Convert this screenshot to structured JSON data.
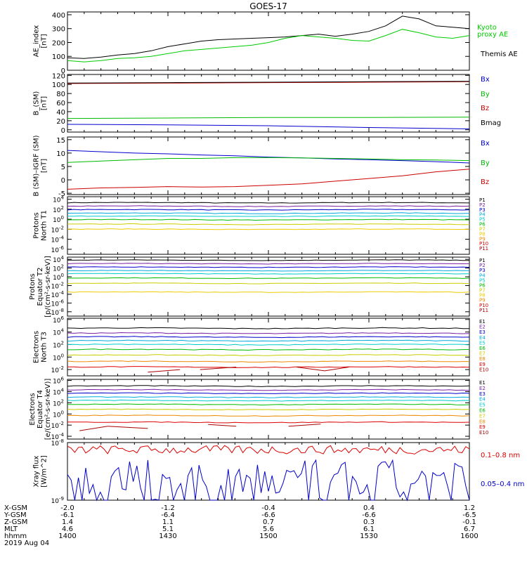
{
  "title": "GOES-17",
  "panels": [
    {
      "id": "ae",
      "ylabel": [
        "AE_index",
        "[nT]"
      ],
      "yticks": [
        "400",
        "300",
        "200",
        "100",
        "0"
      ],
      "ylim": [
        0,
        420
      ],
      "scale": "linear",
      "legend": [
        {
          "label": "Kyoto",
          "color": "#00cc00"
        },
        {
          "label": "proxy AE",
          "color": "#00cc00"
        },
        {
          "label": "Themis AE",
          "color": "#000000"
        }
      ]
    },
    {
      "id": "bmag",
      "ylabel": [
        "B_(SM)",
        "[nT]"
      ],
      "yticks": [
        "120",
        "100",
        "80",
        "60",
        "40",
        "20",
        "0"
      ],
      "ylim": [
        -5,
        122
      ],
      "scale": "linear",
      "legend": [
        {
          "label": "Bx",
          "color": "#0000cc"
        },
        {
          "label": "By",
          "color": "#00bb00"
        },
        {
          "label": "Bz",
          "color": "#cc0000"
        },
        {
          "label": "Bmag",
          "color": "#000000"
        }
      ]
    },
    {
      "id": "bdiff",
      "ylabel": [
        "B (SM)–IGRF (SM)",
        "[nT]"
      ],
      "yticks": [
        "15",
        "10",
        "5",
        "0",
        "-5"
      ],
      "ylim": [
        -5.5,
        16
      ],
      "scale": "linear",
      "legend": [
        {
          "label": "Bx",
          "color": "#0000cc"
        },
        {
          "label": "By",
          "color": "#00bb00"
        },
        {
          "label": "Bz",
          "color": "#cc0000"
        }
      ]
    },
    {
      "id": "pn",
      "ylabel": [
        "Protons",
        "North T1"
      ],
      "yticks": [
        "10^4",
        "10^2",
        "10^0",
        "10^-2",
        "10^-4",
        "10^-6"
      ],
      "ylim": [
        -7,
        4.5
      ],
      "scale": "log",
      "legend": [
        {
          "label": "P1",
          "color": "#000000"
        },
        {
          "label": "P2",
          "color": "#7a1fa2"
        },
        {
          "label": "P3",
          "color": "#0000cc"
        },
        {
          "label": "P4",
          "color": "#00aadd"
        },
        {
          "label": "P5",
          "color": "#00cccc"
        },
        {
          "label": "P6",
          "color": "#00bb00"
        },
        {
          "label": "P7",
          "color": "#cccc00"
        },
        {
          "label": "P8",
          "color": "#eecc00"
        },
        {
          "label": "P9",
          "color": "#ee8800"
        },
        {
          "label": "P10",
          "color": "#dd0000"
        },
        {
          "label": "P11",
          "color": "#aa0000"
        }
      ]
    },
    {
      "id": "pe",
      "ylabel": [
        "Protons",
        "Equator T2",
        "[p/(cm²-s-sr-keV)]"
      ],
      "yticks": [
        "10^4",
        "10^2",
        "10^0",
        "10^-2",
        "10^-4",
        "10^-6",
        "10^-8"
      ],
      "ylim": [
        -9,
        4.5
      ],
      "scale": "log",
      "legend": [
        {
          "label": "P1",
          "color": "#000000"
        },
        {
          "label": "P2",
          "color": "#7a1fa2"
        },
        {
          "label": "P3",
          "color": "#0000cc"
        },
        {
          "label": "P4",
          "color": "#00aadd"
        },
        {
          "label": "P5",
          "color": "#00cccc"
        },
        {
          "label": "P6",
          "color": "#00bb00"
        },
        {
          "label": "P7",
          "color": "#cccc00"
        },
        {
          "label": "P8",
          "color": "#eecc00"
        },
        {
          "label": "P9",
          "color": "#ee8800"
        },
        {
          "label": "P10",
          "color": "#dd0000"
        },
        {
          "label": "P11",
          "color": "#aa0000"
        }
      ]
    },
    {
      "id": "en",
      "ylabel": [
        "Electrons",
        "North T3"
      ],
      "yticks": [
        "10^6",
        "10^4",
        "10^2",
        "10^0",
        "10^-2"
      ],
      "ylim": [
        -3,
        6.2
      ],
      "scale": "log",
      "legend": [
        {
          "label": "E1",
          "color": "#000000"
        },
        {
          "label": "E2",
          "color": "#7a1fa2"
        },
        {
          "label": "E3",
          "color": "#0000cc"
        },
        {
          "label": "E4",
          "color": "#00aadd"
        },
        {
          "label": "E5",
          "color": "#00cccc"
        },
        {
          "label": "E6",
          "color": "#00bb00"
        },
        {
          "label": "E7",
          "color": "#cccc00"
        },
        {
          "label": "E8",
          "color": "#ee8800"
        },
        {
          "label": "E9",
          "color": "#dd0000"
        },
        {
          "label": "E10",
          "color": "#aa0000"
        }
      ]
    },
    {
      "id": "ee",
      "ylabel": [
        "Electrons",
        "Equator T4",
        "[e/(cm²-s-sr-keV)]"
      ],
      "yticks": [
        "10^6",
        "10^4",
        "10^2",
        "10^0",
        "10^-2",
        "10^-4"
      ],
      "ylim": [
        -4.5,
        6.2
      ],
      "scale": "log",
      "legend": [
        {
          "label": "E1",
          "color": "#000000"
        },
        {
          "label": "E2",
          "color": "#7a1fa2"
        },
        {
          "label": "E3",
          "color": "#0000cc"
        },
        {
          "label": "E4",
          "color": "#00aadd"
        },
        {
          "label": "E5",
          "color": "#00cccc"
        },
        {
          "label": "E6",
          "color": "#00bb00"
        },
        {
          "label": "E7",
          "color": "#cccc00"
        },
        {
          "label": "E8",
          "color": "#ee8800"
        },
        {
          "label": "E9",
          "color": "#dd0000"
        },
        {
          "label": "E10",
          "color": "#aa0000"
        }
      ]
    },
    {
      "id": "xray",
      "ylabel": [
        "Xray flux",
        "[W/m^2]"
      ],
      "yticks": [
        "10^-8",
        "10^-9"
      ],
      "ylim": [
        -9,
        -8
      ],
      "scale": "log",
      "legend": [
        {
          "label": "0.1–0.8 nm",
          "color": "#dd0000"
        },
        {
          "label": "0.05–0.4 nm",
          "color": "#0000cc"
        }
      ]
    }
  ],
  "footer": {
    "rows": [
      {
        "label": "X-GSM",
        "values": [
          "-2.0",
          "-1.2",
          "-0.4",
          "0.4",
          "1.2"
        ]
      },
      {
        "label": "Y-GSM",
        "values": [
          "-6.1",
          "-6.4",
          "-6.6",
          "-6.6",
          "-6.5"
        ]
      },
      {
        "label": "Z-GSM",
        "values": [
          "1.4",
          "1.1",
          "0.7",
          "0.3",
          "-0.1"
        ]
      },
      {
        "label": "MLT",
        "values": [
          "4.6",
          "5.1",
          "5.6",
          "6.1",
          "6.7"
        ]
      },
      {
        "label": "hhmm",
        "values": [
          "1400",
          "1430",
          "1500",
          "1530",
          "1600"
        ]
      }
    ],
    "date": "2019 Aug 04"
  },
  "chart_data": [
    {
      "type": "line",
      "panel": "ae",
      "title": "GOES-17",
      "ylabel": "AE_index [nT]",
      "ylim": [
        0,
        420
      ],
      "x": [
        0,
        5,
        10,
        15,
        20,
        25,
        30,
        35,
        40,
        45,
        50,
        55,
        60,
        65,
        70,
        75,
        80,
        85,
        90,
        95,
        100,
        105,
        110,
        115,
        120
      ],
      "series": [
        {
          "name": "Themis AE",
          "color": "#000000",
          "values": [
            90,
            85,
            95,
            110,
            120,
            140,
            170,
            190,
            210,
            220,
            225,
            230,
            235,
            240,
            250,
            260,
            245,
            260,
            280,
            320,
            390,
            370,
            320,
            310,
            300
          ]
        },
        {
          "name": "Kyoto proxy AE",
          "color": "#00cc00",
          "values": [
            70,
            60,
            70,
            85,
            90,
            100,
            120,
            140,
            150,
            160,
            170,
            180,
            200,
            230,
            250,
            240,
            230,
            215,
            210,
            250,
            295,
            270,
            240,
            230,
            250
          ]
        }
      ]
    },
    {
      "type": "line",
      "panel": "bmag",
      "ylabel": "B_(SM) [nT]",
      "ylim": [
        -5,
        122
      ],
      "x": [
        0,
        30,
        60,
        90,
        120
      ],
      "series": [
        {
          "name": "Bx",
          "color": "#0000cc",
          "values": [
            12,
            11,
            9,
            5,
            2
          ]
        },
        {
          "name": "By",
          "color": "#00bb00",
          "values": [
            25,
            26,
            27,
            27,
            28
          ]
        },
        {
          "name": "Bz",
          "color": "#cc0000",
          "values": [
            102,
            103,
            104,
            105,
            106
          ]
        },
        {
          "name": "Bmag",
          "color": "#000000",
          "values": [
            103,
            104,
            105,
            106,
            107
          ]
        }
      ]
    },
    {
      "type": "line",
      "panel": "bdiff",
      "ylabel": "B (SM)–IGRF (SM) [nT]",
      "ylim": [
        -5.5,
        16
      ],
      "x": [
        0,
        10,
        20,
        30,
        40,
        50,
        60,
        70,
        80,
        90,
        100,
        110,
        120
      ],
      "series": [
        {
          "name": "Bx",
          "color": "#0000cc",
          "values": [
            11,
            10.5,
            10,
            9.7,
            9.3,
            9,
            8.5,
            8.2,
            7.8,
            7.5,
            7.2,
            6.8,
            6.3
          ]
        },
        {
          "name": "By",
          "color": "#00bb00",
          "values": [
            6.5,
            7,
            7.5,
            8,
            8,
            8.3,
            8.3,
            8.2,
            8,
            7.8,
            7.5,
            7.4,
            7.2
          ]
        },
        {
          "name": "Bz",
          "color": "#cc0000",
          "values": [
            -3.5,
            -3,
            -2.8,
            -2.5,
            -2.7,
            -2.5,
            -2,
            -1.5,
            -0.5,
            0.5,
            1.5,
            3,
            4
          ]
        }
      ]
    },
    {
      "type": "line",
      "panel": "pn",
      "scale": "log",
      "series": [
        {
          "name": "P1",
          "color": "#000000",
          "log10": 3.3
        },
        {
          "name": "P2",
          "color": "#7a1fa2",
          "log10": 2.6
        },
        {
          "name": "P3",
          "color": "#0000cc",
          "log10": 1.9
        },
        {
          "name": "P4",
          "color": "#00aadd",
          "log10": 1.2
        },
        {
          "name": "P5",
          "color": "#00cccc",
          "log10": 0.6
        },
        {
          "name": "P6",
          "color": "#00bb00",
          "log10": -0.1
        },
        {
          "name": "P7",
          "color": "#cccc00",
          "log10": -1.0
        },
        {
          "name": "P8",
          "color": "#eecc00",
          "log10": -2.0
        }
      ]
    },
    {
      "type": "line",
      "panel": "pe",
      "scale": "log",
      "series": [
        {
          "name": "P1",
          "color": "#000000",
          "log10": 3.8
        },
        {
          "name": "P2",
          "color": "#7a1fa2",
          "log10": 3.0
        },
        {
          "name": "P3",
          "color": "#0000cc",
          "log10": 2.2
        },
        {
          "name": "P4",
          "color": "#00aadd",
          "log10": 1.4
        },
        {
          "name": "P5",
          "color": "#00cccc",
          "log10": 0.7
        },
        {
          "name": "P6",
          "color": "#00bb00",
          "log10": -0.3
        },
        {
          "name": "P7",
          "color": "#cccc00",
          "log10": -1.5
        },
        {
          "name": "P8",
          "color": "#eecc00",
          "log10": -3.5
        }
      ]
    },
    {
      "type": "line",
      "panel": "en",
      "scale": "log",
      "series": [
        {
          "name": "E1",
          "color": "#000000",
          "log10": 4.6
        },
        {
          "name": "E2",
          "color": "#7a1fa2",
          "log10": 3.8
        },
        {
          "name": "E3",
          "color": "#0000cc",
          "log10": 3.2
        },
        {
          "name": "E4",
          "color": "#00aadd",
          "log10": 2.6
        },
        {
          "name": "E5",
          "color": "#00cccc",
          "log10": 2.0
        },
        {
          "name": "E6",
          "color": "#00bb00",
          "log10": 1.2
        },
        {
          "name": "E7",
          "color": "#cccc00",
          "log10": 0.3
        },
        {
          "name": "E8",
          "color": "#ee8800",
          "log10": -0.7
        },
        {
          "name": "E9",
          "color": "#dd0000",
          "log10": -1.6
        }
      ]
    },
    {
      "type": "line",
      "panel": "ee",
      "scale": "log",
      "series": [
        {
          "name": "E1",
          "color": "#000000",
          "log10": 5.0
        },
        {
          "name": "E2",
          "color": "#7a1fa2",
          "log10": 4.3
        },
        {
          "name": "E3",
          "color": "#0000cc",
          "log10": 3.7
        },
        {
          "name": "E4",
          "color": "#00aadd",
          "log10": 3.0
        },
        {
          "name": "E5",
          "color": "#00cccc",
          "log10": 2.4
        },
        {
          "name": "E6",
          "color": "#00bb00",
          "log10": 1.7
        },
        {
          "name": "E7",
          "color": "#cccc00",
          "log10": 0.8
        },
        {
          "name": "E8",
          "color": "#ee8800",
          "log10": -0.3
        },
        {
          "name": "E9",
          "color": "#dd0000",
          "log10": -1.5
        }
      ]
    },
    {
      "type": "line",
      "panel": "xray",
      "scale": "log",
      "ylim": [
        -9,
        -8
      ],
      "series": [
        {
          "name": "0.1–0.8 nm",
          "color": "#dd0000",
          "band": [
            -8.2,
            -8.05
          ]
        },
        {
          "name": "0.05–0.4 nm",
          "color": "#0000cc",
          "band": [
            -9.0,
            -8.3
          ]
        }
      ]
    }
  ]
}
